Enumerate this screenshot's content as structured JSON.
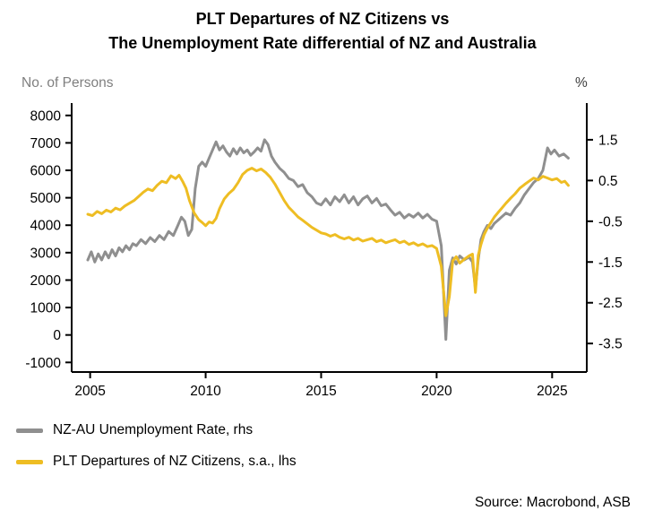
{
  "title": {
    "line1": "PLT Departures of NZ Citizens vs",
    "line2": "The Unemployment Rate differential of NZ and Australia"
  },
  "axis_units": {
    "left": "No. of Persons",
    "right": "%"
  },
  "legend": [
    {
      "label": "NZ-AU Unemployment Rate, rhs",
      "color": "#8F8F8F"
    },
    {
      "label": "PLT Departures of NZ Citizens, s.a., lhs",
      "color": "#EEBD23"
    }
  ],
  "source": "Source: Macrobond, ASB",
  "chart_data": {
    "type": "line",
    "title": "PLT Departures of NZ Citizens vs The Unemployment Rate differential of NZ and Australia",
    "x_ticks": [
      2005,
      2010,
      2015,
      2020,
      2025
    ],
    "x_range": [
      2004.2,
      2026.5
    ],
    "grid": false,
    "legend_position": "bottom-left",
    "left_axis": {
      "label": "No. of Persons",
      "ticks": [
        8000,
        7000,
        6000,
        5000,
        4000,
        3000,
        2000,
        1000,
        0,
        -1000
      ],
      "range": [
        -1350,
        8450
      ]
    },
    "right_axis": {
      "label": "%",
      "ticks": [
        1.5,
        0.5,
        -0.5,
        -1.5,
        -2.5,
        -3.5
      ],
      "range": [
        -4.2,
        2.4
      ]
    },
    "series": [
      {
        "name": "NZ-AU Unemployment Rate, rhs",
        "axis": "right",
        "unit": "%",
        "color": "#8F8F8F",
        "points": [
          [
            2004.9,
            -1.45
          ],
          [
            2005.05,
            -1.25
          ],
          [
            2005.2,
            -1.5
          ],
          [
            2005.35,
            -1.3
          ],
          [
            2005.5,
            -1.45
          ],
          [
            2005.65,
            -1.25
          ],
          [
            2005.8,
            -1.4
          ],
          [
            2005.95,
            -1.2
          ],
          [
            2006.1,
            -1.35
          ],
          [
            2006.25,
            -1.15
          ],
          [
            2006.4,
            -1.25
          ],
          [
            2006.55,
            -1.1
          ],
          [
            2006.7,
            -1.2
          ],
          [
            2006.85,
            -1.05
          ],
          [
            2007.0,
            -1.1
          ],
          [
            2007.2,
            -0.95
          ],
          [
            2007.4,
            -1.05
          ],
          [
            2007.6,
            -0.9
          ],
          [
            2007.8,
            -1.0
          ],
          [
            2008.0,
            -0.85
          ],
          [
            2008.2,
            -0.95
          ],
          [
            2008.4,
            -0.75
          ],
          [
            2008.6,
            -0.85
          ],
          [
            2008.8,
            -0.6
          ],
          [
            2008.95,
            -0.4
          ],
          [
            2009.1,
            -0.5
          ],
          [
            2009.25,
            -0.85
          ],
          [
            2009.4,
            -0.7
          ],
          [
            2009.55,
            0.3
          ],
          [
            2009.7,
            0.85
          ],
          [
            2009.85,
            0.95
          ],
          [
            2010.0,
            0.85
          ],
          [
            2010.15,
            1.05
          ],
          [
            2010.3,
            1.25
          ],
          [
            2010.45,
            1.45
          ],
          [
            2010.6,
            1.25
          ],
          [
            2010.75,
            1.35
          ],
          [
            2010.9,
            1.2
          ],
          [
            2011.05,
            1.1
          ],
          [
            2011.2,
            1.28
          ],
          [
            2011.35,
            1.15
          ],
          [
            2011.5,
            1.3
          ],
          [
            2011.65,
            1.18
          ],
          [
            2011.8,
            1.25
          ],
          [
            2011.95,
            1.12
          ],
          [
            2012.1,
            1.2
          ],
          [
            2012.25,
            1.3
          ],
          [
            2012.4,
            1.22
          ],
          [
            2012.55,
            1.5
          ],
          [
            2012.7,
            1.38
          ],
          [
            2012.85,
            1.1
          ],
          [
            2013.0,
            0.95
          ],
          [
            2013.2,
            0.8
          ],
          [
            2013.4,
            0.7
          ],
          [
            2013.6,
            0.55
          ],
          [
            2013.8,
            0.5
          ],
          [
            2014.0,
            0.35
          ],
          [
            2014.2,
            0.4
          ],
          [
            2014.4,
            0.2
          ],
          [
            2014.6,
            0.1
          ],
          [
            2014.8,
            -0.05
          ],
          [
            2015.0,
            -0.1
          ],
          [
            2015.2,
            0.05
          ],
          [
            2015.4,
            -0.1
          ],
          [
            2015.6,
            0.1
          ],
          [
            2015.8,
            -0.02
          ],
          [
            2016.0,
            0.15
          ],
          [
            2016.2,
            -0.05
          ],
          [
            2016.4,
            0.1
          ],
          [
            2016.6,
            -0.1
          ],
          [
            2016.8,
            0.05
          ],
          [
            2017.0,
            0.12
          ],
          [
            2017.2,
            -0.05
          ],
          [
            2017.4,
            0.06
          ],
          [
            2017.6,
            -0.12
          ],
          [
            2017.8,
            -0.08
          ],
          [
            2018.0,
            -0.22
          ],
          [
            2018.2,
            -0.35
          ],
          [
            2018.4,
            -0.28
          ],
          [
            2018.6,
            -0.42
          ],
          [
            2018.8,
            -0.33
          ],
          [
            2019.0,
            -0.4
          ],
          [
            2019.2,
            -0.3
          ],
          [
            2019.4,
            -0.42
          ],
          [
            2019.6,
            -0.33
          ],
          [
            2019.8,
            -0.45
          ],
          [
            2020.0,
            -0.5
          ],
          [
            2020.2,
            -1.1
          ],
          [
            2020.4,
            -3.4
          ],
          [
            2020.55,
            -1.7
          ],
          [
            2020.7,
            -1.4
          ],
          [
            2020.85,
            -1.55
          ],
          [
            2021.0,
            -1.35
          ],
          [
            2021.2,
            -1.45
          ],
          [
            2021.4,
            -1.38
          ],
          [
            2021.55,
            -1.5
          ],
          [
            2021.68,
            -2.15
          ],
          [
            2021.8,
            -1.45
          ],
          [
            2021.92,
            -0.95
          ],
          [
            2022.05,
            -0.75
          ],
          [
            2022.2,
            -0.6
          ],
          [
            2022.35,
            -0.68
          ],
          [
            2022.5,
            -0.55
          ],
          [
            2022.65,
            -0.48
          ],
          [
            2022.8,
            -0.4
          ],
          [
            2023.0,
            -0.3
          ],
          [
            2023.2,
            -0.35
          ],
          [
            2023.4,
            -0.18
          ],
          [
            2023.6,
            -0.05
          ],
          [
            2023.8,
            0.15
          ],
          [
            2024.0,
            0.3
          ],
          [
            2024.2,
            0.45
          ],
          [
            2024.4,
            0.55
          ],
          [
            2024.6,
            0.75
          ],
          [
            2024.8,
            1.3
          ],
          [
            2024.95,
            1.15
          ],
          [
            2025.1,
            1.25
          ],
          [
            2025.3,
            1.1
          ],
          [
            2025.5,
            1.15
          ],
          [
            2025.7,
            1.05
          ]
        ]
      },
      {
        "name": "PLT Departures of NZ Citizens, s.a., lhs",
        "axis": "left",
        "unit": "persons",
        "color": "#EEBD23",
        "points": [
          [
            2004.9,
            4400
          ],
          [
            2005.1,
            4350
          ],
          [
            2005.3,
            4500
          ],
          [
            2005.5,
            4420
          ],
          [
            2005.7,
            4550
          ],
          [
            2005.9,
            4480
          ],
          [
            2006.1,
            4620
          ],
          [
            2006.3,
            4560
          ],
          [
            2006.5,
            4700
          ],
          [
            2006.7,
            4800
          ],
          [
            2006.9,
            4900
          ],
          [
            2007.1,
            5050
          ],
          [
            2007.3,
            5200
          ],
          [
            2007.5,
            5320
          ],
          [
            2007.7,
            5260
          ],
          [
            2007.9,
            5450
          ],
          [
            2008.1,
            5600
          ],
          [
            2008.3,
            5550
          ],
          [
            2008.5,
            5800
          ],
          [
            2008.7,
            5700
          ],
          [
            2008.85,
            5820
          ],
          [
            2009.0,
            5600
          ],
          [
            2009.15,
            5350
          ],
          [
            2009.3,
            4900
          ],
          [
            2009.5,
            4450
          ],
          [
            2009.7,
            4200
          ],
          [
            2009.85,
            4100
          ],
          [
            2010.0,
            3980
          ],
          [
            2010.15,
            4120
          ],
          [
            2010.3,
            4080
          ],
          [
            2010.45,
            4250
          ],
          [
            2010.6,
            4600
          ],
          [
            2010.8,
            4950
          ],
          [
            2011.0,
            5150
          ],
          [
            2011.2,
            5300
          ],
          [
            2011.4,
            5550
          ],
          [
            2011.6,
            5850
          ],
          [
            2011.8,
            6000
          ],
          [
            2012.0,
            6080
          ],
          [
            2012.2,
            5980
          ],
          [
            2012.4,
            6050
          ],
          [
            2012.6,
            5920
          ],
          [
            2012.8,
            5750
          ],
          [
            2013.0,
            5500
          ],
          [
            2013.2,
            5200
          ],
          [
            2013.4,
            4900
          ],
          [
            2013.6,
            4650
          ],
          [
            2013.8,
            4480
          ],
          [
            2014.0,
            4300
          ],
          [
            2014.2,
            4180
          ],
          [
            2014.4,
            4050
          ],
          [
            2014.6,
            3920
          ],
          [
            2014.8,
            3820
          ],
          [
            2015.0,
            3720
          ],
          [
            2015.2,
            3680
          ],
          [
            2015.4,
            3600
          ],
          [
            2015.6,
            3660
          ],
          [
            2015.8,
            3560
          ],
          [
            2016.0,
            3500
          ],
          [
            2016.2,
            3560
          ],
          [
            2016.4,
            3460
          ],
          [
            2016.6,
            3520
          ],
          [
            2016.8,
            3420
          ],
          [
            2017.0,
            3470
          ],
          [
            2017.2,
            3520
          ],
          [
            2017.4,
            3400
          ],
          [
            2017.6,
            3460
          ],
          [
            2017.8,
            3360
          ],
          [
            2018.0,
            3420
          ],
          [
            2018.2,
            3470
          ],
          [
            2018.4,
            3360
          ],
          [
            2018.6,
            3420
          ],
          [
            2018.8,
            3300
          ],
          [
            2019.0,
            3360
          ],
          [
            2019.2,
            3260
          ],
          [
            2019.4,
            3320
          ],
          [
            2019.6,
            3220
          ],
          [
            2019.8,
            3260
          ],
          [
            2020.0,
            3150
          ],
          [
            2020.2,
            2500
          ],
          [
            2020.4,
            700
          ],
          [
            2020.55,
            1400
          ],
          [
            2020.7,
            2700
          ],
          [
            2020.85,
            2850
          ],
          [
            2021.0,
            2620
          ],
          [
            2021.2,
            2760
          ],
          [
            2021.4,
            2880
          ],
          [
            2021.55,
            2950
          ],
          [
            2021.68,
            1550
          ],
          [
            2021.8,
            2900
          ],
          [
            2021.92,
            3300
          ],
          [
            2022.05,
            3650
          ],
          [
            2022.2,
            3900
          ],
          [
            2022.35,
            4100
          ],
          [
            2022.5,
            4300
          ],
          [
            2022.65,
            4450
          ],
          [
            2022.8,
            4600
          ],
          [
            2023.0,
            4800
          ],
          [
            2023.2,
            4980
          ],
          [
            2023.4,
            5150
          ],
          [
            2023.6,
            5350
          ],
          [
            2023.8,
            5480
          ],
          [
            2024.0,
            5600
          ],
          [
            2024.2,
            5720
          ],
          [
            2024.4,
            5650
          ],
          [
            2024.6,
            5780
          ],
          [
            2024.8,
            5720
          ],
          [
            2025.0,
            5650
          ],
          [
            2025.2,
            5700
          ],
          [
            2025.4,
            5560
          ],
          [
            2025.55,
            5600
          ],
          [
            2025.7,
            5450
          ]
        ]
      }
    ]
  }
}
